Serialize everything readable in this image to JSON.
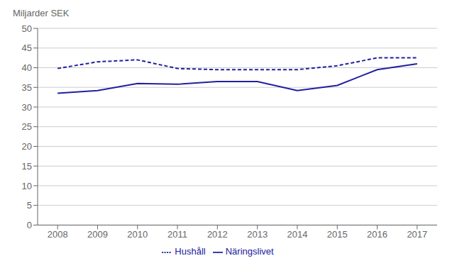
{
  "chart_data": {
    "type": "line",
    "y_label": "Miljarder SEK",
    "x": [
      2008,
      2009,
      2010,
      2011,
      2012,
      2013,
      2014,
      2015,
      2016,
      2017
    ],
    "series": [
      {
        "name": "Näringslivet",
        "color": "#2020a0",
        "line_style": "solid",
        "values": [
          33.5,
          34.2,
          36.0,
          35.8,
          36.5,
          36.5,
          34.2,
          35.5,
          39.5,
          41.0
        ]
      },
      {
        "name": "Hushåll",
        "color": "#2020a0",
        "line_style": "dashed",
        "values": [
          39.8,
          41.5,
          42.0,
          39.8,
          39.5,
          39.5,
          39.5,
          40.5,
          42.5,
          42.5
        ]
      }
    ],
    "xlim": [
      2007.5,
      2017.5
    ],
    "xticks": [
      2008,
      2009,
      2010,
      2011,
      2012,
      2013,
      2014,
      2015,
      2016,
      2017
    ],
    "ylim": [
      0,
      50
    ],
    "yticks": [
      0,
      5,
      10,
      15,
      20,
      25,
      30,
      35,
      40,
      45,
      50
    ],
    "grid": true,
    "legend": "bottom"
  }
}
